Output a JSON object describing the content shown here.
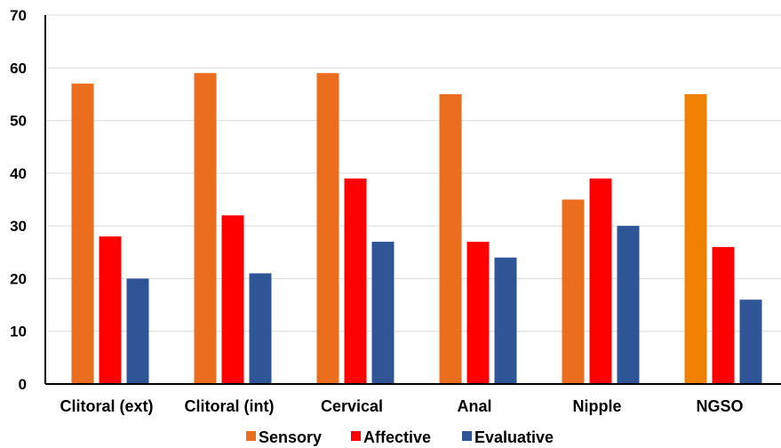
{
  "chart_data": {
    "type": "bar",
    "categories": [
      "Clitoral (ext)",
      "Clitoral (int)",
      "Cervical",
      "Anal",
      "Nipple",
      "NGSO"
    ],
    "series": [
      {
        "name": "Sensory",
        "values": [
          57,
          59,
          59,
          55,
          35,
          55
        ],
        "color": "#EB6E1F"
      },
      {
        "name": "Affective",
        "values": [
          28,
          32,
          39,
          27,
          39,
          26
        ],
        "color": "#FF0000"
      },
      {
        "name": "Evaluative",
        "values": [
          20,
          21,
          27,
          24,
          30,
          16
        ],
        "color": "#2F5597"
      }
    ],
    "bar_color_overrides": [
      {
        "series": 0,
        "category": 5,
        "color": "#F08000"
      }
    ],
    "ylim": [
      0,
      70
    ],
    "yticks": [
      0,
      10,
      20,
      30,
      40,
      50,
      60,
      70
    ],
    "grid": true,
    "legend": "bottom",
    "title": "",
    "xlabel": "",
    "ylabel": ""
  }
}
